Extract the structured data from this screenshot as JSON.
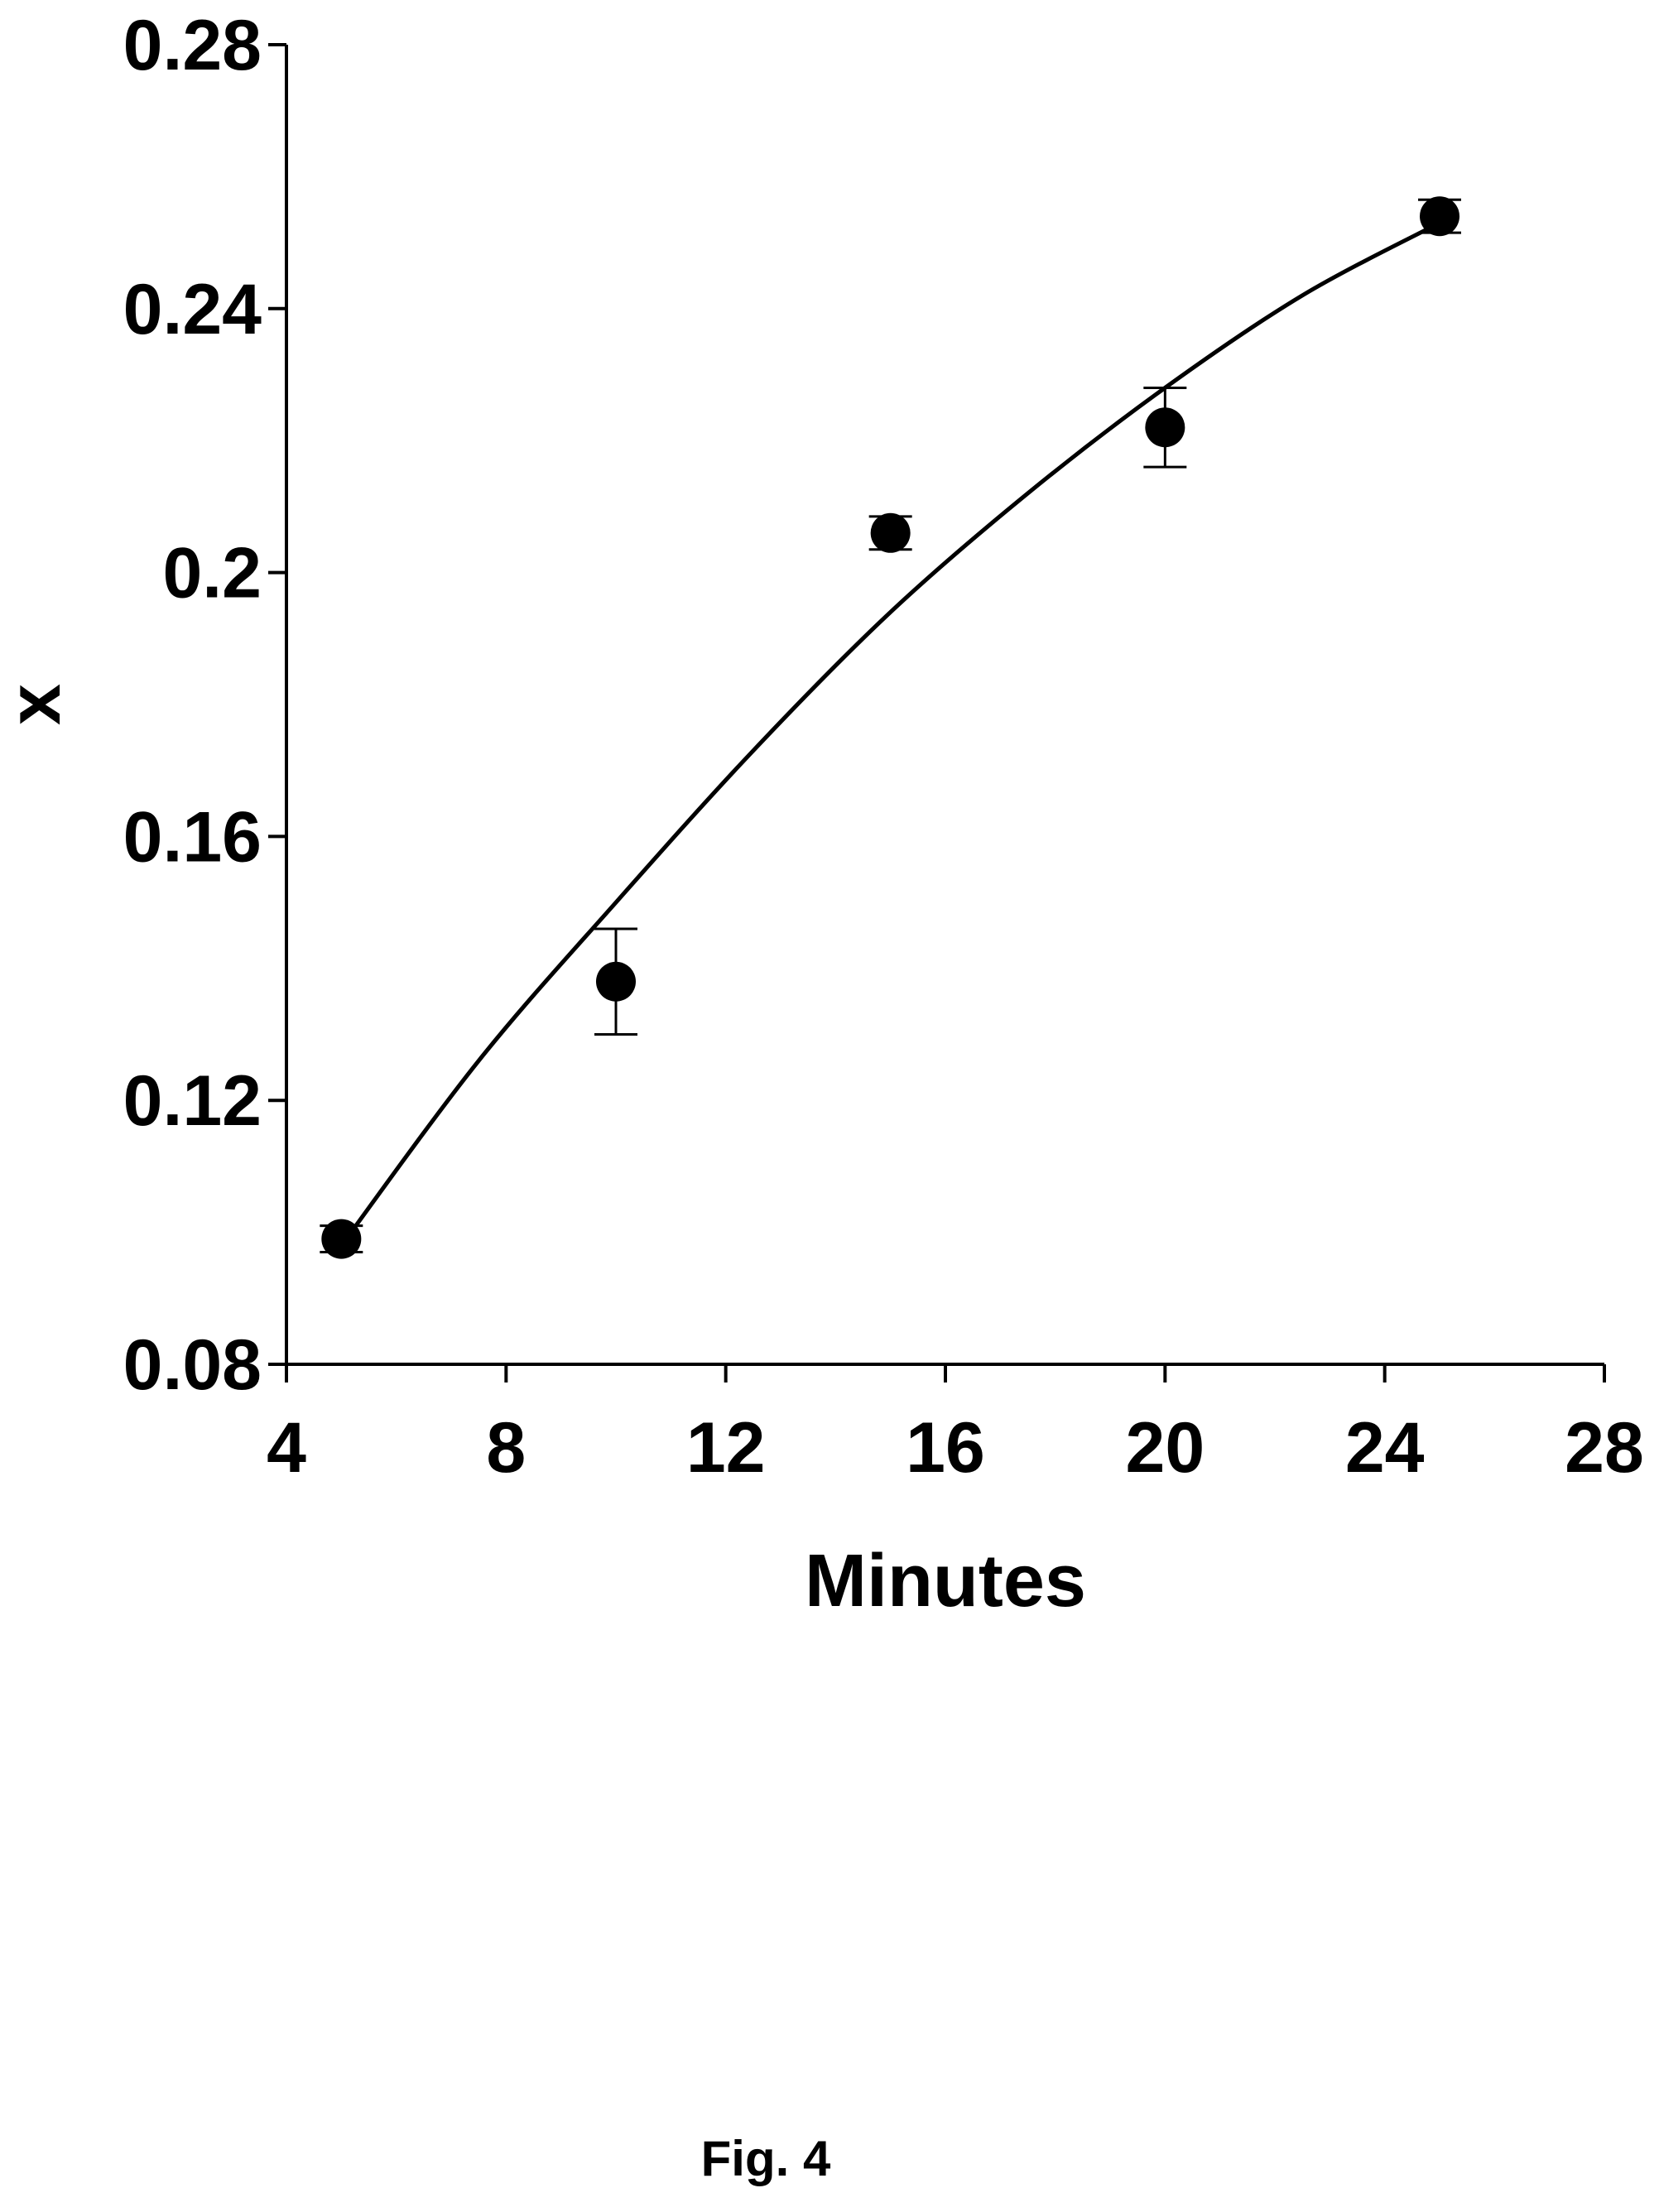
{
  "chart_data": {
    "type": "scatter",
    "xlabel": "Minutes",
    "ylabel": "x",
    "xlim": [
      4,
      28
    ],
    "ylim": [
      0.08,
      0.28
    ],
    "xticks": [
      "4",
      "8",
      "12",
      "16",
      "20",
      "24",
      "28"
    ],
    "yticks": [
      "0.08",
      "0.12",
      "0.16",
      "0.2",
      "0.24",
      "0.28"
    ],
    "grid": false,
    "legend": "none",
    "series": [
      {
        "x": [
          5,
          10,
          15,
          20,
          25
        ],
        "y": [
          0.099,
          0.138,
          0.206,
          0.222,
          0.254
        ],
        "error": [
          0.002,
          0.008,
          0.0025,
          0.006,
          0.0025
        ],
        "marker": "filled-circle",
        "color": "#000000"
      }
    ],
    "fit_line": {
      "type": "curve",
      "x": [
        5,
        7.5,
        10,
        12.5,
        15,
        17.5,
        20,
        22.5,
        25
      ],
      "y": [
        0.098,
        0.126,
        0.15,
        0.173,
        0.194,
        0.212,
        0.228,
        0.242,
        0.253
      ],
      "color": "#000000"
    }
  },
  "caption": "Fig. 4"
}
